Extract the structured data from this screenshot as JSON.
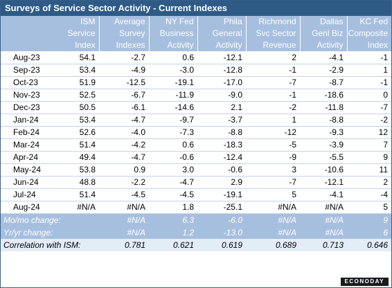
{
  "title": "Surveys of Service Sector Activity - Current Indexes",
  "columns": [
    {
      "lines": [
        "",
        "",
        ""
      ]
    },
    {
      "lines": [
        "ISM",
        "Service",
        "Index"
      ]
    },
    {
      "lines": [
        "Average",
        "Survey",
        "Indexes"
      ]
    },
    {
      "lines": [
        "NY Fed",
        "Business",
        "Activity"
      ]
    },
    {
      "lines": [
        "Phila",
        "General",
        "Activity"
      ]
    },
    {
      "lines": [
        "Richmond",
        "Svc Sector",
        "Revenue"
      ]
    },
    {
      "lines": [
        "Dallas",
        "Genl Biz",
        "Activity"
      ]
    },
    {
      "lines": [
        "KC Fed",
        "Composite",
        "Index"
      ]
    }
  ],
  "rows": [
    [
      "Aug-23",
      "54.1",
      "-2.7",
      "0.6",
      "-12.1",
      "2",
      "-4.1",
      "-1"
    ],
    [
      "Sep-23",
      "53.4",
      "-4.9",
      "-3.0",
      "-12.8",
      "-1",
      "-2.9",
      "1"
    ],
    [
      "Oct-23",
      "51.9",
      "-12.5",
      "-19.1",
      "-17.0",
      "-7",
      "-8.7",
      "-1"
    ],
    [
      "Nov-23",
      "52.5",
      "-6.7",
      "-11.9",
      "-9.0",
      "-1",
      "-18.6",
      "0"
    ],
    [
      "Dec-23",
      "50.5",
      "-6.1",
      "-14.6",
      "2.1",
      "-2",
      "-11.8",
      "-7"
    ],
    [
      "Jan-24",
      "53.4",
      "-4.7",
      "-9.7",
      "-3.7",
      "1",
      "-8.8",
      "-2"
    ],
    [
      "Feb-24",
      "52.6",
      "-4.0",
      "-7.3",
      "-8.8",
      "-12",
      "-9.3",
      "12"
    ],
    [
      "Mar-24",
      "51.4",
      "-4.2",
      "0.6",
      "-18.3",
      "-5",
      "-3.9",
      "7"
    ],
    [
      "Apr-24",
      "49.4",
      "-4.7",
      "-0.6",
      "-12.4",
      "-9",
      "-5.5",
      "9"
    ],
    [
      "May-24",
      "53.8",
      "0.9",
      "3.0",
      "-0.6",
      "3",
      "-10.6",
      "11"
    ],
    [
      "Jun-24",
      "48.8",
      "-2.2",
      "-4.7",
      "2.9",
      "-7",
      "-12.1",
      "2"
    ],
    [
      "Jul-24",
      "51.4",
      "-4.5",
      "-4.5",
      "-19.1",
      "5",
      "-4.1",
      "-4"
    ],
    [
      "Aug-24",
      "#N/A",
      "#N/A",
      "1.8",
      "-25.1",
      "#N/A",
      "#N/A",
      "5"
    ]
  ],
  "stats": [
    {
      "label": "Mo/mo change:",
      "cells": [
        "",
        "#N/A",
        "6.3",
        "-6.0",
        "#N/A",
        "#N/A",
        "9"
      ]
    },
    {
      "label": "Yr/yr change:",
      "cells": [
        "",
        "#N/A",
        "1.2",
        "-13.0",
        "#N/A",
        "#N/A",
        "6"
      ]
    },
    {
      "label": "Correlation with ISM:",
      "cells": [
        "",
        "0.781",
        "0.621",
        "0.619",
        "0.689",
        "0.713",
        "0.646"
      ]
    }
  ],
  "logo": "ECONODAY"
}
